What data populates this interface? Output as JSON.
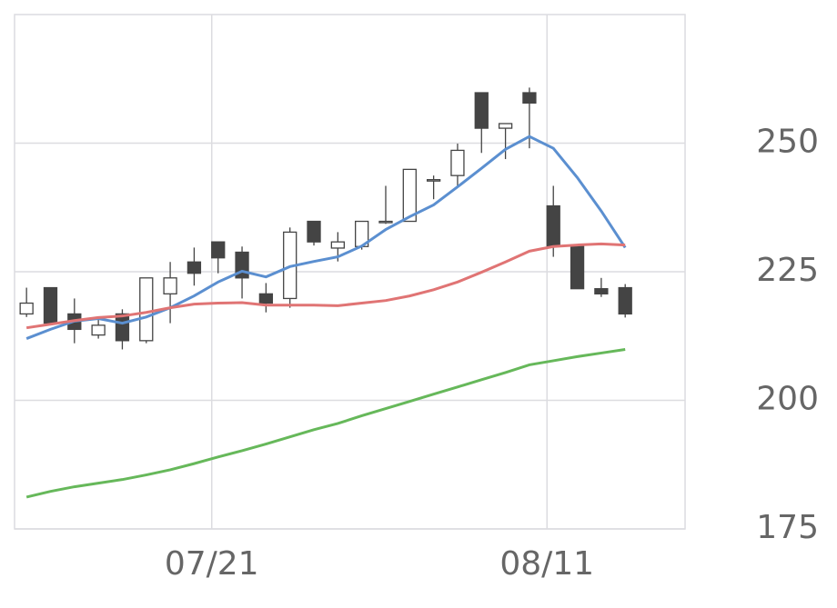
{
  "chart_data": {
    "type": "candlestick",
    "categories": [
      null,
      null,
      null,
      null,
      null,
      null,
      null,
      null,
      "07/21",
      null,
      null,
      null,
      null,
      null,
      null,
      null,
      null,
      null,
      null,
      null,
      null,
      null,
      "08/11",
      null,
      null,
      null
    ],
    "open": [
      216.8,
      221.9,
      216.8,
      212.7,
      216.8,
      211.6,
      220.7,
      226.9,
      230.8,
      228.8,
      220.7,
      219.8,
      234.8,
      229.6,
      229.9,
      234.6,
      234.8,
      242.8,
      243.7,
      259.8,
      252.9,
      259.8,
      237.8,
      230.0,
      221.7,
      221.9
    ],
    "high": [
      221.9,
      221.9,
      219.8,
      215.9,
      217.7,
      223.8,
      226.9,
      229.7,
      230.8,
      229.9,
      222.8,
      233.6,
      234.8,
      232.7,
      234.8,
      241.7,
      244.9,
      243.7,
      249.9,
      259.8,
      253.8,
      260.8,
      241.7,
      230.0,
      223.8,
      222.6
    ],
    "low": [
      216.2,
      215.0,
      211.1,
      212.0,
      209.9,
      211.1,
      215.0,
      222.3,
      224.7,
      219.8,
      217.1,
      218.0,
      230.1,
      227.0,
      229.3,
      234.3,
      234.8,
      239.1,
      241.5,
      248.1,
      246.9,
      249.0,
      227.9,
      221.7,
      220.1,
      216.1
    ],
    "close": [
      218.9,
      215.0,
      213.8,
      214.6,
      211.6,
      223.8,
      223.8,
      224.7,
      227.7,
      223.8,
      218.9,
      232.7,
      230.8,
      230.8,
      234.8,
      234.8,
      244.9,
      242.9,
      248.6,
      252.9,
      253.8,
      257.8,
      230.0,
      221.7,
      220.7,
      216.8
    ],
    "up_color": "#ffffff",
    "down_color": "#444444",
    "wick_color": "#444444",
    "lines": [
      {
        "color": "#5b8fd0",
        "values": [
          212.0,
          213.8,
          215.4,
          215.9,
          215.0,
          216.2,
          218.0,
          220.3,
          223.0,
          225.1,
          224.0,
          226.0,
          227.0,
          227.9,
          230.0,
          233.2,
          235.7,
          238.0,
          241.5,
          245.1,
          248.8,
          251.3,
          249.0,
          243.3,
          236.8,
          229.7
        ]
      },
      {
        "color": "#e07474",
        "values": [
          214.1,
          214.8,
          215.5,
          216.1,
          216.4,
          217.1,
          218.0,
          218.7,
          218.9,
          219.0,
          218.5,
          218.5,
          218.5,
          218.4,
          218.9,
          219.4,
          220.3,
          221.5,
          223.0,
          224.9,
          226.9,
          229.0,
          229.9,
          230.2,
          230.4,
          230.2
        ]
      },
      {
        "color": "#66b85a",
        "values": [
          181.2,
          182.3,
          183.2,
          183.9,
          184.6,
          185.5,
          186.5,
          187.7,
          189.0,
          190.2,
          191.5,
          192.9,
          194.3,
          195.5,
          197.0,
          198.4,
          199.8,
          201.2,
          202.6,
          204.0,
          205.4,
          206.9,
          207.7,
          208.5,
          209.2,
          209.9
        ]
      }
    ],
    "ylim": [
      175,
      275
    ],
    "yticks": [
      175,
      200,
      225,
      250
    ],
    "grid": true
  }
}
